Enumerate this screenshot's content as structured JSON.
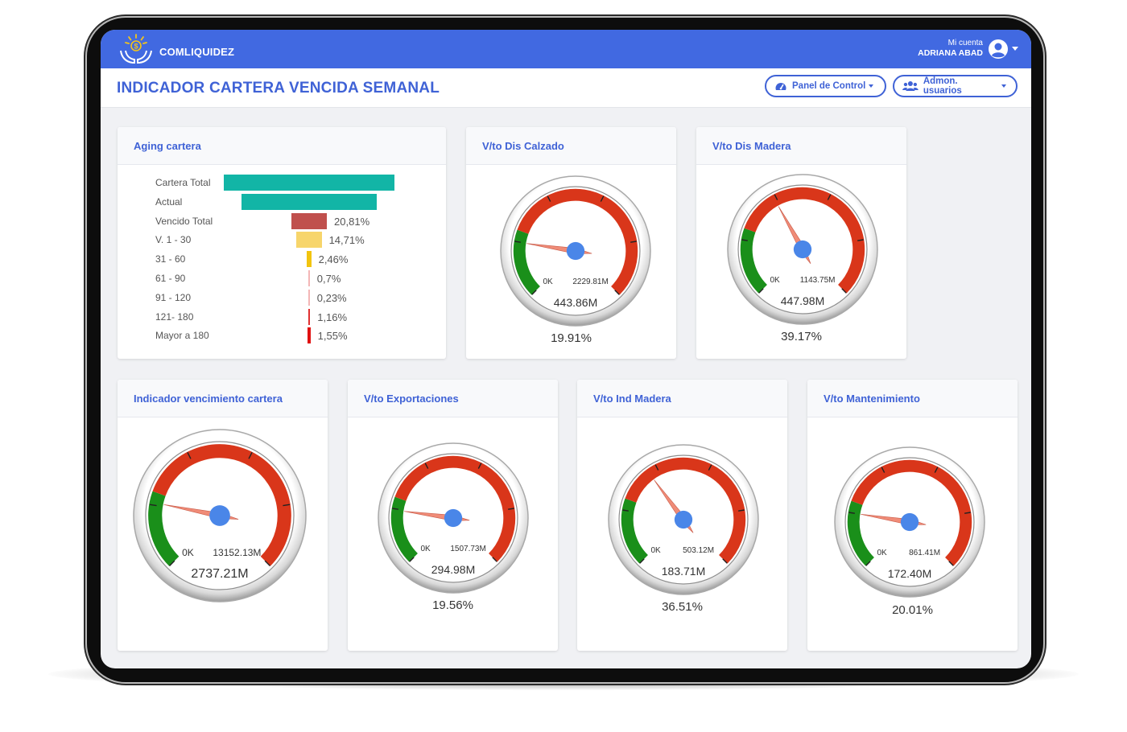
{
  "app": {
    "brand": "COMLIQUIDEZ",
    "account_label": "Mi cuenta",
    "account_name": "ADRIANA ABAD"
  },
  "page": {
    "title": "INDICADOR CARTERA VENCIDA SEMANAL",
    "buttons": [
      {
        "label": "Panel de Control",
        "icon": "tachometer-icon"
      },
      {
        "label": "Admon. usuarios",
        "icon": "users-icon"
      }
    ]
  },
  "colors": {
    "accent": "#4169e1",
    "gauge_red": "#d9361a",
    "gauge_green": "#1a8f1a",
    "needle": "#f08c78",
    "hub": "#4a86e8"
  },
  "aging": {
    "title": "Aging cartera",
    "chart_data": {
      "type": "bar",
      "categories": [
        "Cartera Total",
        "Actual",
        "Vencido Total",
        "V. 1 - 30",
        "31 - 60",
        "61 - 90",
        "91 - 120",
        "121- 180",
        "Mayor a 180"
      ],
      "value_labels": [
        "",
        "",
        "20,81%",
        "14,71%",
        "2,46%",
        "0,7%",
        "0,23%",
        "1,16%",
        "1,55%"
      ],
      "values": [
        100,
        79.19,
        20.81,
        14.71,
        2.46,
        0.7,
        0.23,
        1.16,
        1.55
      ],
      "colors": [
        "#12b5a6",
        "#12b5a6",
        "#c0504d",
        "#f7d56b",
        "#f2c40f",
        "#f4b6b6",
        "#f4b6b6",
        "#e03030",
        "#e01010"
      ]
    }
  },
  "gauges": [
    {
      "title": "V/to Dis Calzado",
      "min_label": "0K",
      "max_label": "2229.81M",
      "value_label": "443.86M",
      "percent_label": "19.91%",
      "value": 443.86,
      "max": 2229.81
    },
    {
      "title": "V/to Dis Madera",
      "min_label": "0K",
      "max_label": "1143.75M",
      "value_label": "447.98M",
      "percent_label": "39.17%",
      "value": 447.98,
      "max": 1143.75
    },
    {
      "title": "Indicador vencimiento cartera",
      "min_label": "0K",
      "max_label": "13152.13M",
      "value_label": "2737.21M",
      "percent_label": "",
      "value": 2737.21,
      "max": 13152.13
    },
    {
      "title": "V/to Exportaciones",
      "min_label": "0K",
      "max_label": "1507.73M",
      "value_label": "294.98M",
      "percent_label": "19.56%",
      "value": 294.98,
      "max": 1507.73
    },
    {
      "title": "V/to Ind Madera",
      "min_label": "0K",
      "max_label": "503.12M",
      "value_label": "183.71M",
      "percent_label": "36.51%",
      "value": 183.71,
      "max": 503.12
    },
    {
      "title": "V/to Mantenimiento",
      "min_label": "0K",
      "max_label": "861.41M",
      "value_label": "172.40M",
      "percent_label": "20.01%",
      "value": 172.4,
      "max": 861.41
    }
  ]
}
